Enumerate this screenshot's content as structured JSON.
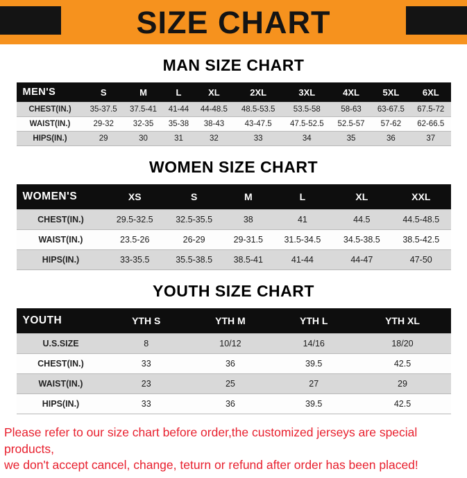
{
  "banner": {
    "title": "SIZE CHART",
    "bg_color": "#F6921E",
    "block_color": "#141414"
  },
  "sections": [
    {
      "id": "men",
      "heading": "MAN SIZE CHART",
      "table": {
        "header": [
          "MEN'S",
          "S",
          "M",
          "L",
          "XL",
          "2XL",
          "3XL",
          "4XL",
          "5XL",
          "6XL"
        ],
        "rows": [
          [
            "CHEST(IN.)",
            "35-37.5",
            "37.5-41",
            "41-44",
            "44-48.5",
            "48.5-53.5",
            "53.5-58",
            "58-63",
            "63-67.5",
            "67.5-72"
          ],
          [
            "WAIST(IN.)",
            "29-32",
            "32-35",
            "35-38",
            "38-43",
            "43-47.5",
            "47.5-52.5",
            "52.5-57",
            "57-62",
            "62-66.5"
          ],
          [
            "HIPS(IN.)",
            "29",
            "30",
            "31",
            "32",
            "33",
            "34",
            "35",
            "36",
            "37"
          ]
        ]
      }
    },
    {
      "id": "women",
      "heading": "WOMEN SIZE CHART",
      "table": {
        "header": [
          "WOMEN'S",
          "XS",
          "S",
          "M",
          "L",
          "XL",
          "XXL"
        ],
        "rows": [
          [
            "CHEST(IN.)",
            "29.5-32.5",
            "32.5-35.5",
            "38",
            "41",
            "44.5",
            "44.5-48.5"
          ],
          [
            "WAIST(IN.)",
            "23.5-26",
            "26-29",
            "29-31.5",
            "31.5-34.5",
            "34.5-38.5",
            "38.5-42.5"
          ],
          [
            "HIPS(IN.)",
            "33-35.5",
            "35.5-38.5",
            "38.5-41",
            "41-44",
            "44-47",
            "47-50"
          ]
        ]
      }
    },
    {
      "id": "youth",
      "heading": "YOUTH SIZE CHART",
      "table": {
        "header": [
          "YOUTH",
          "YTH S",
          "YTH M",
          "YTH L",
          "YTH XL"
        ],
        "rows": [
          [
            "U.S.SIZE",
            "8",
            "10/12",
            "14/16",
            "18/20"
          ],
          [
            "CHEST(IN.)",
            "33",
            "36",
            "39.5",
            "42.5"
          ],
          [
            "WAIST(IN.)",
            "23",
            "25",
            "27",
            "29"
          ],
          [
            "HIPS(IN.)",
            "33",
            "36",
            "39.5",
            "42.5"
          ]
        ]
      }
    }
  ],
  "footer": {
    "line1": "Please refer to our size chart before order,the customized jerseys are special products,",
    "line2": "we don't accept cancel, change, teturn or refund after order has been placed!",
    "text_color": "#E8202E"
  }
}
